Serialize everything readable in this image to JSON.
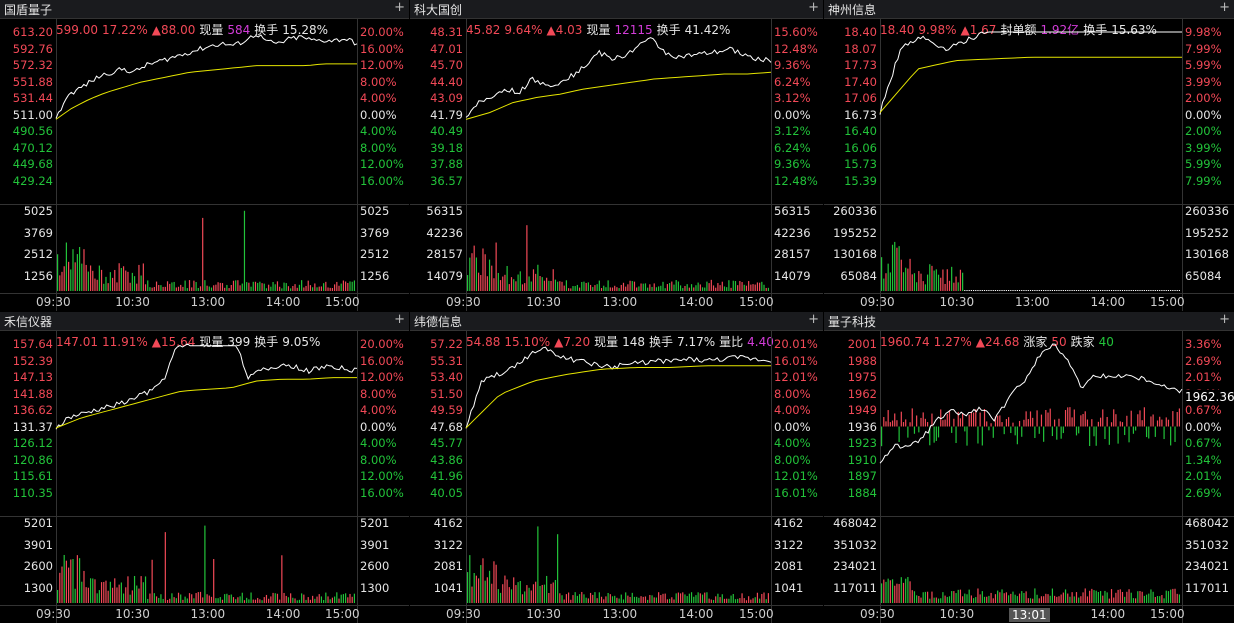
{
  "panels": [
    {
      "name": "国盾量子",
      "info": [
        {
          "t": "599.00",
          "c": "red"
        },
        {
          "t": "17.22%",
          "c": "red"
        },
        {
          "t": "▲88.00",
          "c": "red"
        },
        {
          "t": "现量",
          "c": "white"
        },
        {
          "t": "584",
          "c": "mag"
        },
        {
          "t": "换手",
          "c": "white"
        },
        {
          "t": "15.28%",
          "c": "white"
        }
      ],
      "prices": [
        "613.20",
        "592.76",
        "572.32",
        "551.88",
        "531.44",
        "511.00",
        "490.56",
        "470.12",
        "449.68",
        "429.24"
      ],
      "pcts": [
        "20.00%",
        "16.00%",
        "12.00%",
        "8.00%",
        "4.00%",
        "0.00%",
        "4.00%",
        "8.00%",
        "12.00%",
        "16.00%"
      ],
      "vols": [
        "5025",
        "3769",
        "2512",
        "1256"
      ],
      "times": [
        "09:30",
        "10:30",
        "13:00",
        "14:00",
        "15:00"
      ]
    },
    {
      "name": "科大国创",
      "info": [
        {
          "t": "45.82",
          "c": "red"
        },
        {
          "t": "9.64%",
          "c": "red"
        },
        {
          "t": "▲4.03",
          "c": "red"
        },
        {
          "t": "现量",
          "c": "white"
        },
        {
          "t": "12115",
          "c": "mag"
        },
        {
          "t": "换手",
          "c": "white"
        },
        {
          "t": "41.42%",
          "c": "white"
        }
      ],
      "prices": [
        "48.31",
        "47.01",
        "45.70",
        "44.40",
        "43.09",
        "41.79",
        "40.49",
        "39.18",
        "37.88",
        "36.57"
      ],
      "pcts": [
        "15.60%",
        "12.48%",
        "9.36%",
        "6.24%",
        "3.12%",
        "0.00%",
        "3.12%",
        "6.24%",
        "9.36%",
        "12.48%"
      ],
      "vols": [
        "56315",
        "42236",
        "28157",
        "14079"
      ],
      "times": [
        "09:30",
        "10:30",
        "13:00",
        "14:00",
        "15:00"
      ]
    },
    {
      "name": "神州信息",
      "info": [
        {
          "t": "18.40",
          "c": "red"
        },
        {
          "t": "9.98%",
          "c": "red"
        },
        {
          "t": "▲1.67",
          "c": "red"
        },
        {
          "t": "封单额",
          "c": "white"
        },
        {
          "t": "1.92亿",
          "c": "mag"
        },
        {
          "t": "换手",
          "c": "white"
        },
        {
          "t": "15.63%",
          "c": "white"
        }
      ],
      "prices": [
        "18.40",
        "18.07",
        "17.73",
        "17.40",
        "17.06",
        "16.73",
        "16.40",
        "16.06",
        "15.73",
        "15.39"
      ],
      "pcts": [
        "9.98%",
        "7.99%",
        "5.99%",
        "3.99%",
        "2.00%",
        "0.00%",
        "2.00%",
        "3.99%",
        "5.99%",
        "7.99%"
      ],
      "vols": [
        "260336",
        "195252",
        "130168",
        "65084"
      ],
      "times": [
        "09:30",
        "10:30",
        "13:00",
        "14:00",
        "15:00"
      ]
    },
    {
      "name": "禾信仪器",
      "info": [
        {
          "t": "147.01",
          "c": "red"
        },
        {
          "t": "11.91%",
          "c": "red"
        },
        {
          "t": "▲15.64",
          "c": "red"
        },
        {
          "t": "现量",
          "c": "white"
        },
        {
          "t": "399",
          "c": "white"
        },
        {
          "t": "换手",
          "c": "white"
        },
        {
          "t": "9.05%",
          "c": "white"
        }
      ],
      "prices": [
        "157.64",
        "152.39",
        "147.13",
        "141.88",
        "136.62",
        "131.37",
        "126.12",
        "120.86",
        "115.61",
        "110.35"
      ],
      "pcts": [
        "20.00%",
        "16.00%",
        "12.00%",
        "8.00%",
        "4.00%",
        "0.00%",
        "4.00%",
        "8.00%",
        "12.00%",
        "16.00%"
      ],
      "vols": [
        "5201",
        "3901",
        "2600",
        "1300"
      ],
      "times": [
        "09:30",
        "10:30",
        "13:00",
        "14:00",
        "15:00"
      ]
    },
    {
      "name": "纬德信息",
      "info": [
        {
          "t": "54.88",
          "c": "red"
        },
        {
          "t": "15.10%",
          "c": "red"
        },
        {
          "t": "▲7.20",
          "c": "red"
        },
        {
          "t": "现量",
          "c": "white"
        },
        {
          "t": "148",
          "c": "white"
        },
        {
          "t": "换手",
          "c": "white"
        },
        {
          "t": "7.17%",
          "c": "white"
        },
        {
          "t": "量比",
          "c": "white"
        },
        {
          "t": "4.40",
          "c": "mag"
        }
      ],
      "prices": [
        "57.22",
        "55.31",
        "53.40",
        "51.50",
        "49.59",
        "47.68",
        "45.77",
        "43.86",
        "41.96",
        "40.05"
      ],
      "pcts": [
        "20.01%",
        "16.01%",
        "12.01%",
        "8.00%",
        "4.00%",
        "0.00%",
        "4.00%",
        "8.00%",
        "12.01%",
        "16.01%"
      ],
      "vols": [
        "4162",
        "3122",
        "2081",
        "1041"
      ],
      "times": [
        "09:30",
        "10:30",
        "13:00",
        "14:00",
        "15:00"
      ]
    },
    {
      "name": "量子科技",
      "info": [
        {
          "t": "1960.74",
          "c": "red"
        },
        {
          "t": "1.27%",
          "c": "red"
        },
        {
          "t": "▲24.68",
          "c": "red"
        },
        {
          "t": "涨家",
          "c": "white"
        },
        {
          "t": "50",
          "c": "red"
        },
        {
          "t": "跌家",
          "c": "white"
        },
        {
          "t": "40",
          "c": "green"
        }
      ],
      "prices": [
        "2001",
        "1988",
        "1975",
        "1962",
        "1949",
        "1936",
        "1923",
        "1910",
        "1897",
        "1884"
      ],
      "pcts": [
        "3.36%",
        "2.69%",
        "2.01%",
        "1.34%",
        "0.67%",
        "0.00%",
        "0.67%",
        "1.34%",
        "2.01%",
        "2.69%"
      ],
      "vols": [
        "468042",
        "351032",
        "234021",
        "117011"
      ],
      "times": [
        "09:30",
        "10:30",
        "13:00",
        "14:00",
        "15:00"
      ],
      "last": "1962.36",
      "cursor_time": "13:01"
    }
  ],
  "colors": {
    "up": "#f24957",
    "down": "#22c33a",
    "avg": "#e5e500",
    "price": "#ffffff",
    "grid": "#333333",
    "title_bg": "#1a1b1e"
  }
}
